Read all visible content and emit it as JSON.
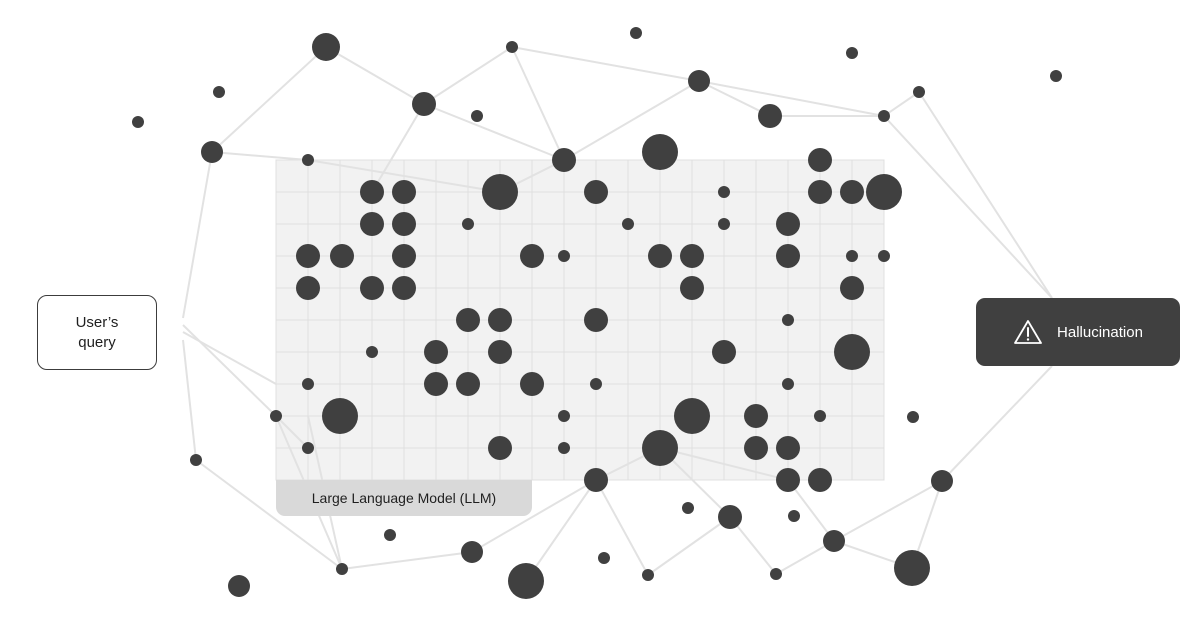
{
  "labels": {
    "query": "User’s query",
    "hallucination": "Hallucination",
    "llm": "Large Language Model (LLM)"
  },
  "icons": {
    "warning": "warning-triangle-icon"
  },
  "colors": {
    "node": "#404040",
    "edge": "#e2e2e2",
    "grid_fill": "#f2f2f2",
    "grid_line": "#e0e0e0",
    "label_bg": "#d9d9d9",
    "dark_box": "#404040"
  }
}
